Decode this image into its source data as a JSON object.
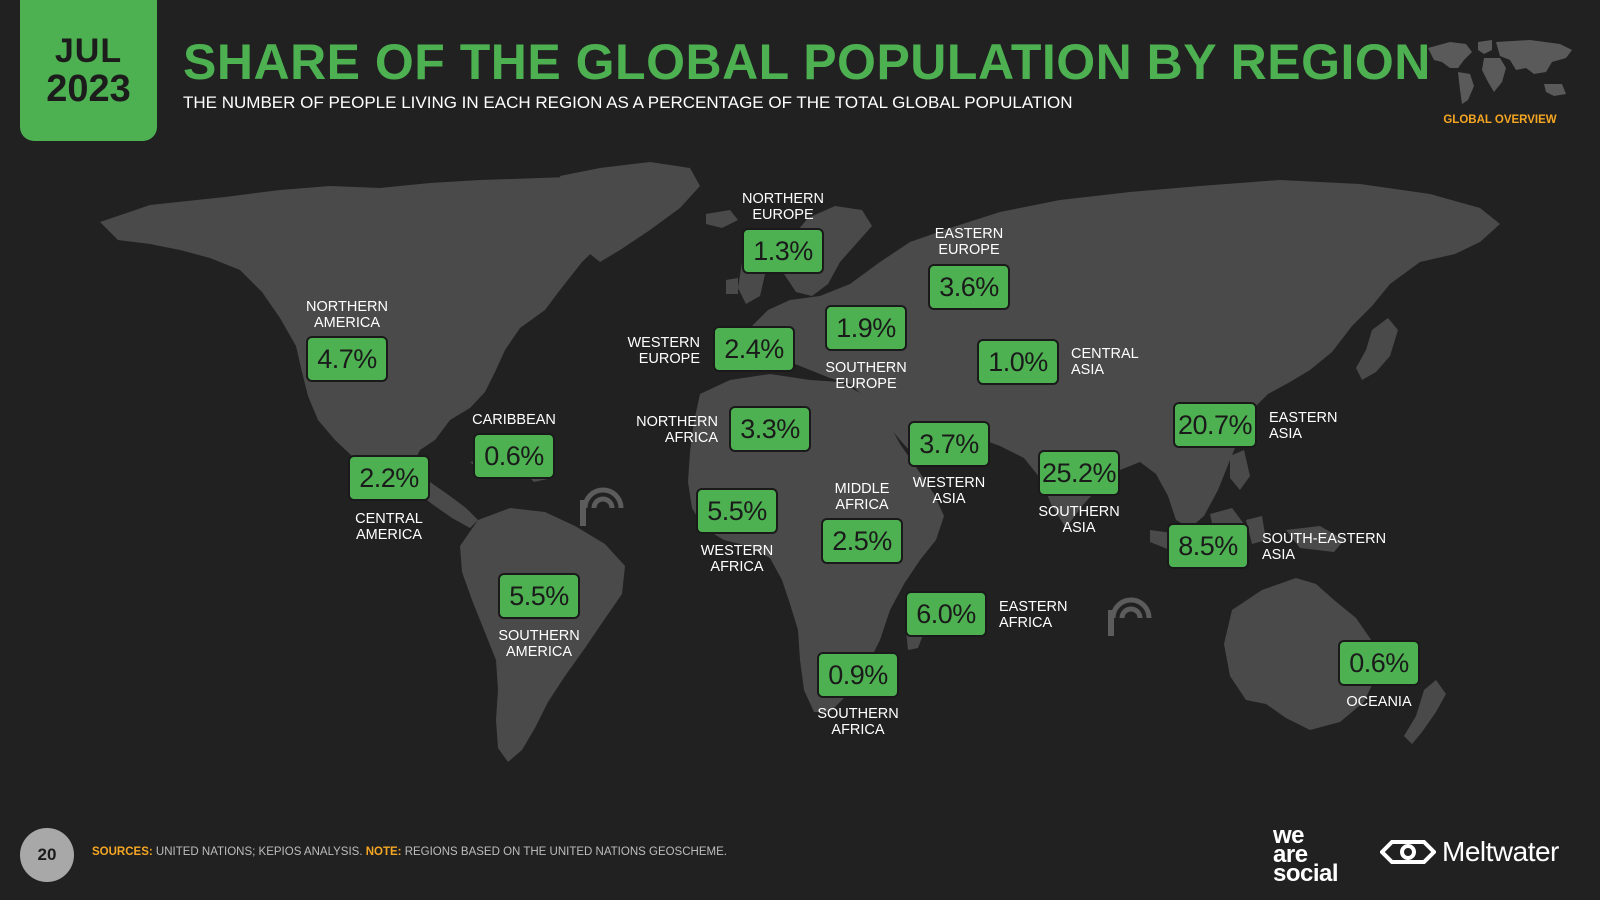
{
  "header": {
    "date_month": "JUL",
    "date_year": "2023",
    "title": "SHARE OF THE GLOBAL POPULATION BY REGION",
    "subtitle": "THE NUMBER OF PEOPLE LIVING IN EACH REGION AS A PERCENTAGE OF THE TOTAL GLOBAL POPULATION",
    "section_label": "GLOBAL OVERVIEW"
  },
  "regions": [
    {
      "name": "NORTHERN\nAMERICA",
      "value": "4.7%"
    },
    {
      "name": "CENTRAL\nAMERICA",
      "value": "2.2%"
    },
    {
      "name": "CARIBBEAN",
      "value": "0.6%"
    },
    {
      "name": "SOUTHERN\nAMERICA",
      "value": "5.5%"
    },
    {
      "name": "NORTHERN\nEUROPE",
      "value": "1.3%"
    },
    {
      "name": "WESTERN\nEUROPE",
      "value": "2.4%"
    },
    {
      "name": "SOUTHERN\nEUROPE",
      "value": "1.9%"
    },
    {
      "name": "EASTERN\nEUROPE",
      "value": "3.6%"
    },
    {
      "name": "CENTRAL\nASIA",
      "value": "1.0%"
    },
    {
      "name": "NORTHERN\nAFRICA",
      "value": "3.3%"
    },
    {
      "name": "WESTERN\nASIA",
      "value": "3.7%"
    },
    {
      "name": "WESTERN\nAFRICA",
      "value": "5.5%"
    },
    {
      "name": "MIDDLE\nAFRICA",
      "value": "2.5%"
    },
    {
      "name": "SOUTHERN\nASIA",
      "value": "25.2%"
    },
    {
      "name": "EASTERN\nASIA",
      "value": "20.7%"
    },
    {
      "name": "SOUTH-EASTERN\nASIA",
      "value": "8.5%"
    },
    {
      "name": "EASTERN\nAFRICA",
      "value": "6.0%"
    },
    {
      "name": "SOUTHERN\nAFRICA",
      "value": "0.9%"
    },
    {
      "name": "OCEANIA",
      "value": "0.6%"
    }
  ],
  "footer": {
    "page_number": "20",
    "sources_key": "SOURCES:",
    "sources_text": " UNITED NATIONS; KEPIOS ANALYSIS. ",
    "note_key": "NOTE:",
    "note_text": " REGIONS BASED ON THE UNITED NATIONS GEOSCHEME.",
    "brand_1_line1": "we",
    "brand_1_line2": "are",
    "brand_1_line3": "social",
    "brand_2": "Meltwater"
  },
  "colors": {
    "background": "#212121",
    "land": "#4a4a4a",
    "accent_green": "#4db151",
    "accent_orange": "#f5a623"
  }
}
